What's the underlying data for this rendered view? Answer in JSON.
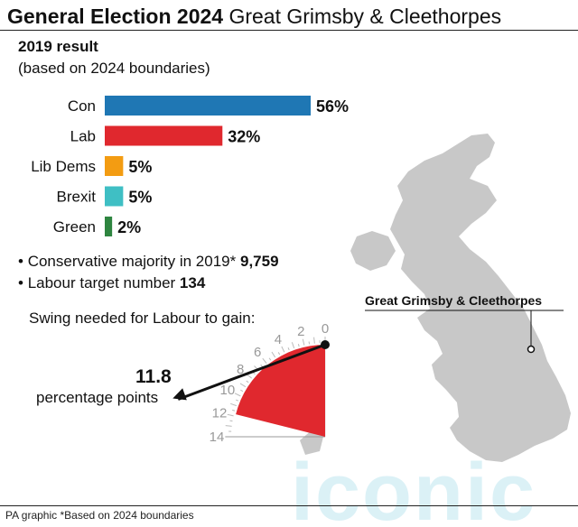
{
  "title_bold": "General Election 2024",
  "title_rest": "Great Grimsby & Cleethorpes",
  "subtitle": "2019 result",
  "subtitle_note": "(based on 2024 boundaries)",
  "chart_data": {
    "type": "bar",
    "orientation": "horizontal",
    "categories": [
      "Con",
      "Lab",
      "Lib Dems",
      "Brexit",
      "Green"
    ],
    "values": [
      56,
      32,
      5,
      5,
      2
    ],
    "value_labels": [
      "56%",
      "32%",
      "5%",
      "5%",
      "2%"
    ],
    "colors": [
      "#1f77b4",
      "#e0282e",
      "#f39c12",
      "#3fbfc4",
      "#2e8540"
    ],
    "xlim": [
      0,
      56
    ]
  },
  "majority": {
    "label": "Conservative majority in 2019*",
    "value": "9,759"
  },
  "target": {
    "label": "Labour target number",
    "value": "134"
  },
  "swing": {
    "heading": "Swing needed for Labour to gain:",
    "value": 11.8,
    "value_label": "11.8",
    "unit": "percentage points",
    "scale_max": 14,
    "ticks": [
      "0",
      "2",
      "4",
      "6",
      "8",
      "10",
      "12",
      "14"
    ],
    "fill_color": "#e0282e"
  },
  "map_label": "Great Grimsby & Cleethorpes",
  "watermark": "iconic",
  "footer": "PA graphic *Based on 2024 boundaries"
}
